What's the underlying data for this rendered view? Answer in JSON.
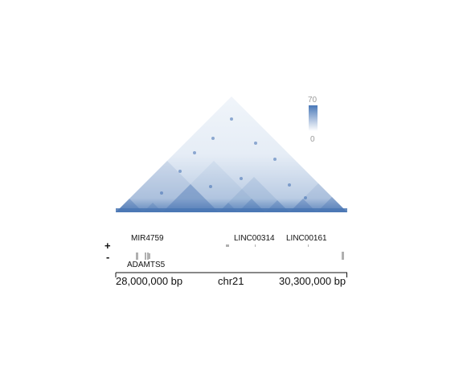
{
  "heatmap": {
    "base_color": "#ffffff",
    "contact_color": "#4a77b4",
    "domain_color": "#3f6eb0"
  },
  "legend": {
    "max_label": "70",
    "min_label": "0",
    "gradient_top": "#4a78b8",
    "gradient_bottom": "#ffffff"
  },
  "genes": {
    "plus_sign": "+",
    "minus_sign": "-",
    "plus_labels": [
      "MIR4759",
      "LINC00314",
      "LINC00161"
    ],
    "minus_labels": [
      "ADAMTS5"
    ]
  },
  "ruler": {
    "start": "28,000,000 bp",
    "chrom": "chr21",
    "end": "30,300,000 bp"
  }
}
